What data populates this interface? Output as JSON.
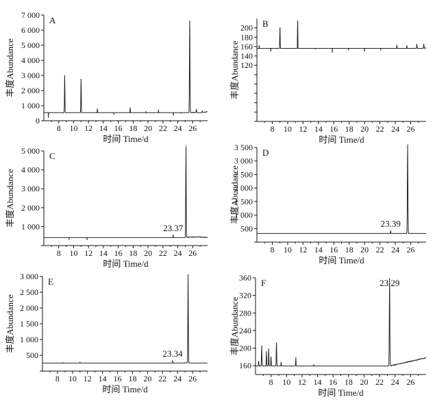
{
  "chart_data": [
    {
      "panel": "A",
      "type": "line",
      "xlabel": "时间 Time/d",
      "ylabel": "丰度Abundance",
      "xlim": [
        6,
        28
      ],
      "ylim": [
        0,
        7000
      ],
      "xticks": [
        8,
        10,
        12,
        14,
        16,
        18,
        20,
        22,
        24,
        26
      ],
      "yticks": [
        0,
        1000,
        2000,
        3000,
        4000,
        5000,
        6000,
        7000
      ],
      "ytick_labels": [
        "0",
        "1 000",
        "2 000",
        "3 000",
        "4 000",
        "5 000",
        "6 000",
        "7 000"
      ],
      "baseline": [
        [
          6,
          180
        ],
        [
          8,
          200
        ],
        [
          12,
          200
        ],
        [
          16,
          220
        ],
        [
          20,
          250
        ],
        [
          24,
          320
        ],
        [
          25,
          400
        ],
        [
          26,
          550
        ],
        [
          27,
          500
        ],
        [
          28,
          600
        ]
      ],
      "peaks": [
        [
          6.6,
          220
        ],
        [
          8.8,
          3000
        ],
        [
          11.0,
          2750
        ],
        [
          13.2,
          780
        ],
        [
          15.4,
          430
        ],
        [
          17.6,
          850
        ],
        [
          19.7,
          600
        ],
        [
          21.4,
          700
        ],
        [
          23.4,
          350
        ],
        [
          24.4,
          500
        ],
        [
          25.6,
          6600
        ],
        [
          26.5,
          750
        ],
        [
          27.3,
          650
        ]
      ],
      "annotation": null
    },
    {
      "panel": "B",
      "type": "line",
      "xlabel": "时间 Time/d",
      "ylabel": "丰度Abundance",
      "xlim": [
        6,
        28
      ],
      "ylim": [
        0,
        220
      ],
      "xticks": [
        8,
        10,
        12,
        14,
        16,
        18,
        20,
        22,
        24,
        26
      ],
      "yticks": [
        0,
        20,
        40,
        60,
        80,
        100,
        120,
        140,
        160,
        180,
        200
      ],
      "ytick_labels": [
        "",
        "",
        "",
        "",
        "",
        "",
        "120",
        "140",
        "160",
        "180",
        "200"
      ],
      "baseline": [
        [
          6,
          143
        ],
        [
          8,
          140
        ],
        [
          12,
          137
        ],
        [
          16,
          138
        ],
        [
          20,
          141
        ],
        [
          24,
          146
        ],
        [
          26,
          152
        ],
        [
          28,
          157
        ]
      ],
      "peaks": [
        [
          6.3,
          162
        ],
        [
          7.8,
          150
        ],
        [
          9.0,
          200
        ],
        [
          11.3,
          215
        ],
        [
          13.6,
          155
        ],
        [
          15.8,
          148
        ],
        [
          17.9,
          153
        ],
        [
          20.0,
          150
        ],
        [
          22.1,
          153
        ],
        [
          24.2,
          163
        ],
        [
          25.5,
          162
        ],
        [
          26.8,
          165
        ],
        [
          27.7,
          165
        ]
      ],
      "annotation": null
    },
    {
      "panel": "C",
      "type": "line",
      "xlabel": "时间 Time/d",
      "ylabel": "丰度Abundance",
      "xlim": [
        6,
        28
      ],
      "ylim": [
        0,
        5000
      ],
      "xticks": [
        8,
        10,
        12,
        14,
        16,
        18,
        20,
        22,
        24,
        26
      ],
      "yticks": [
        0,
        1000,
        2000,
        3000,
        4000,
        5000
      ],
      "ytick_labels": [
        "",
        "1 000",
        "2 000",
        "3 000",
        "4 000",
        "5 000"
      ],
      "baseline": [
        [
          6,
          180
        ],
        [
          10,
          180
        ],
        [
          14,
          190
        ],
        [
          18,
          220
        ],
        [
          22,
          280
        ],
        [
          24,
          340
        ],
        [
          25.5,
          450
        ],
        [
          27,
          450
        ],
        [
          28,
          420
        ]
      ],
      "peaks": [
        [
          9.4,
          330
        ],
        [
          11.8,
          310
        ],
        [
          23.37,
          550
        ],
        [
          25.1,
          5300
        ]
      ],
      "annotation": {
        "x": 23.37,
        "label": "23.37"
      }
    },
    {
      "panel": "D",
      "type": "line",
      "xlabel": "时间 Time/d",
      "ylabel": "丰度Abundance",
      "xlim": [
        6,
        28
      ],
      "ylim": [
        0,
        3500
      ],
      "xticks": [
        8,
        10,
        12,
        14,
        16,
        18,
        20,
        22,
        24,
        26
      ],
      "yticks": [
        0,
        500,
        1000,
        1500,
        2000,
        2500,
        3000,
        3500
      ],
      "ytick_labels": [
        "",
        "500",
        "1 000",
        "1 500",
        "2 000",
        "2 500",
        "3 000",
        "3 500"
      ],
      "baseline": [
        [
          6,
          140
        ],
        [
          10,
          140
        ],
        [
          14,
          150
        ],
        [
          18,
          165
        ],
        [
          22,
          200
        ],
        [
          24,
          230
        ],
        [
          25.5,
          320
        ],
        [
          27,
          310
        ],
        [
          28,
          290
        ]
      ],
      "peaks": [
        [
          23.39,
          420
        ],
        [
          25.6,
          3600
        ]
      ],
      "annotation": {
        "x": 23.39,
        "label": "23.39"
      }
    },
    {
      "panel": "E",
      "type": "line",
      "xlabel": "时间 Time/d",
      "ylabel": "丰度Abundance",
      "xlim": [
        6,
        28
      ],
      "ylim": [
        0,
        3000
      ],
      "xticks": [
        8,
        10,
        12,
        14,
        16,
        18,
        20,
        22,
        24,
        26
      ],
      "yticks": [
        0,
        500,
        1000,
        1500,
        2000,
        2500,
        3000
      ],
      "ytick_labels": [
        "",
        "500",
        "1 000",
        "1 500",
        "2 000",
        "2 500",
        "3 000"
      ],
      "baseline": [
        [
          6,
          120
        ],
        [
          10,
          120
        ],
        [
          14,
          125
        ],
        [
          18,
          140
        ],
        [
          22,
          170
        ],
        [
          24,
          200
        ],
        [
          25,
          260
        ],
        [
          27,
          230
        ],
        [
          28,
          230
        ]
      ],
      "peaks": [
        [
          8.7,
          270
        ],
        [
          11.0,
          280
        ],
        [
          23.34,
          330
        ],
        [
          25.4,
          3050
        ]
      ],
      "annotation": {
        "x": 23.34,
        "label": "23.34"
      }
    },
    {
      "panel": "F",
      "type": "line",
      "xlabel": "时间 Time/d",
      "ylabel": "丰度Abundance",
      "xlim": [
        6,
        28
      ],
      "ylim": [
        140,
        360
      ],
      "xticks": [
        8,
        10,
        12,
        14,
        16,
        18,
        20,
        22,
        24,
        26
      ],
      "yticks": [
        160,
        200,
        240,
        280,
        320,
        360
      ],
      "ytick_labels": [
        "160",
        "200",
        "240",
        "280",
        "320",
        "360"
      ],
      "baseline": [
        [
          6,
          158
        ],
        [
          10,
          152
        ],
        [
          14,
          150
        ],
        [
          18,
          152
        ],
        [
          22,
          155
        ],
        [
          23.5,
          160
        ],
        [
          25,
          166
        ],
        [
          26.5,
          172
        ],
        [
          28,
          178
        ]
      ],
      "peaks": [
        [
          6.4,
          170
        ],
        [
          6.8,
          205
        ],
        [
          7.4,
          192
        ],
        [
          7.7,
          198
        ],
        [
          8.0,
          180
        ],
        [
          8.7,
          212
        ],
        [
          9.3,
          168
        ],
        [
          11.2,
          178
        ],
        [
          13.5,
          162
        ],
        [
          23.29,
          358
        ]
      ],
      "annotation": {
        "x": 23.29,
        "label": "23.29"
      }
    }
  ]
}
